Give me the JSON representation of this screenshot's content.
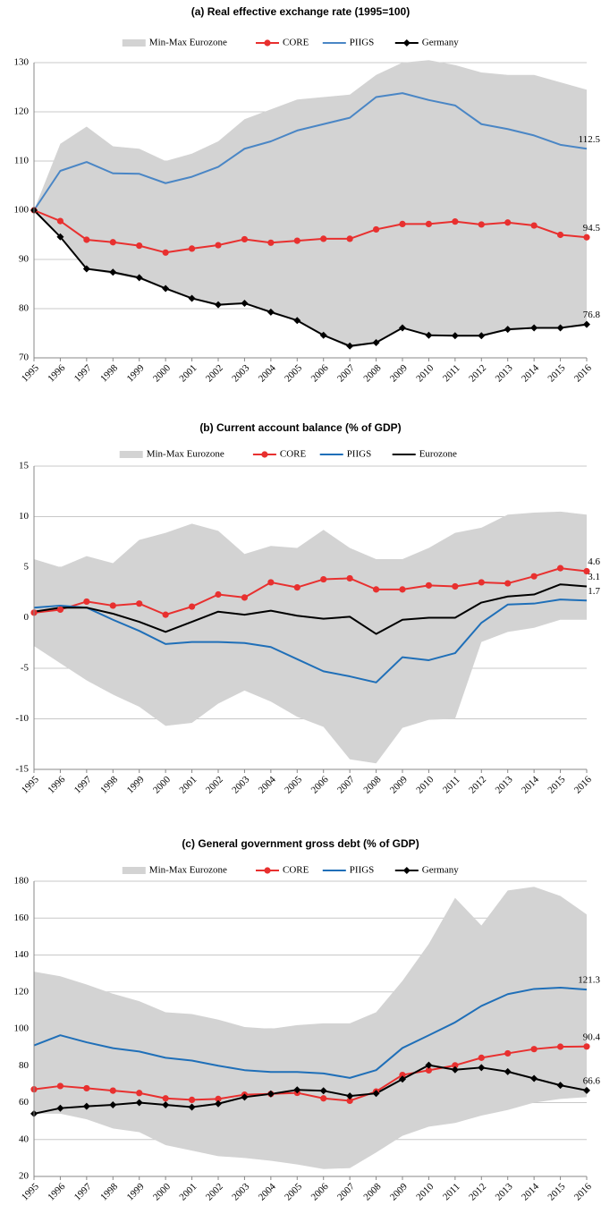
{
  "chart_data": [
    {
      "type": "line",
      "title": "(a) Real effective exchange rate (1995=100)",
      "categories": [
        "1995",
        "1996",
        "1997",
        "1998",
        "1999",
        "2000",
        "2001",
        "2002",
        "2003",
        "2004",
        "2005",
        "2006",
        "2007",
        "2008",
        "2009",
        "2010",
        "2011",
        "2012",
        "2013",
        "2014",
        "2015",
        "2016"
      ],
      "ylim": [
        70,
        130
      ],
      "yticks": [
        70,
        80,
        90,
        100,
        110,
        120,
        130
      ],
      "grid": true,
      "series": [
        {
          "name": "Min-Max Eurozone",
          "kind": "area",
          "color": "#d3d3d3",
          "values": [
            100,
            113.5,
            117,
            113,
            112.5,
            110,
            111.5,
            114,
            118.5,
            120.5,
            122.5,
            123,
            123.5,
            127.5,
            130,
            130.5,
            129.5,
            128,
            127.5,
            127.5,
            126,
            124.5
          ],
          "lower": [
            100,
            95,
            88,
            87,
            86,
            84,
            82,
            80.5,
            81,
            79,
            77.5,
            74.5,
            72,
            73,
            76,
            74.5,
            74.5,
            74.5,
            75.5,
            76,
            76,
            76.5
          ]
        },
        {
          "name": "CORE",
          "color": "#e8302f",
          "marker": "circle",
          "label_last": true,
          "values": [
            100,
            97.8,
            94,
            93.5,
            92.8,
            91.4,
            92.2,
            92.9,
            94.1,
            93.4,
            93.8,
            94.2,
            94.2,
            96.1,
            97.2,
            97.2,
            97.7,
            97.1,
            97.5,
            96.9,
            95,
            94.5
          ]
        },
        {
          "name": "PIIGS",
          "color": "#4a86c5",
          "label_last": true,
          "values": [
            100,
            108,
            109.8,
            107.5,
            107.4,
            105.5,
            106.8,
            108.8,
            112.5,
            114,
            116.2,
            117.5,
            118.8,
            123,
            123.8,
            122.4,
            121.3,
            117.5,
            116.5,
            115.2,
            113.3,
            112.5
          ]
        },
        {
          "name": "Germany",
          "color": "#000000",
          "marker": "diamond",
          "label_last": true,
          "values": [
            100,
            94.6,
            88.1,
            87.4,
            86.3,
            84.1,
            82.1,
            80.8,
            81.1,
            79.3,
            77.6,
            74.6,
            72.4,
            73.1,
            76.1,
            74.6,
            74.5,
            74.5,
            75.8,
            76.1,
            76.1,
            76.8
          ]
        }
      ]
    },
    {
      "type": "line",
      "title": "(b) Current account balance (% of GDP)",
      "categories": [
        "1995",
        "1996",
        "1997",
        "1998",
        "1999",
        "2000",
        "2001",
        "2002",
        "2003",
        "2004",
        "2005",
        "2006",
        "2007",
        "2008",
        "2009",
        "2010",
        "2011",
        "2012",
        "2013",
        "2014",
        "2015",
        "2016"
      ],
      "ylim": [
        -15,
        15
      ],
      "yticks": [
        -15,
        -10,
        -5,
        0,
        5,
        10,
        15
      ],
      "grid": true,
      "series": [
        {
          "name": "Min-Max Eurozone",
          "kind": "area",
          "color": "#d3d3d3",
          "values": [
            5.8,
            5,
            6.1,
            5.4,
            7.7,
            8.4,
            9.3,
            8.6,
            6.3,
            7.1,
            6.9,
            8.7,
            6.9,
            5.8,
            5.8,
            6.9,
            8.4,
            8.9,
            10.2,
            10.4,
            10.5,
            10.2
          ],
          "lower": [
            -2.8,
            -4.5,
            -6.2,
            -7.6,
            -8.8,
            -10.7,
            -10.4,
            -8.5,
            -7.2,
            -8.3,
            -9.8,
            -10.8,
            -14,
            -14.4,
            -10.9,
            -10.1,
            -10,
            -2.4,
            -1.4,
            -1,
            -0.2,
            -0.2
          ]
        },
        {
          "name": "CORE",
          "color": "#e8302f",
          "marker": "circle",
          "label_last": true,
          "values": [
            0.5,
            0.8,
            1.6,
            1.2,
            1.4,
            0.3,
            1.1,
            2.3,
            2,
            3.5,
            3,
            3.8,
            3.9,
            2.8,
            2.8,
            3.2,
            3.1,
            3.5,
            3.4,
            4.1,
            4.9,
            4.6
          ]
        },
        {
          "name": "PIIGS",
          "color": "#1f6fb8",
          "label_last": true,
          "values": [
            1,
            1.2,
            1,
            -0.2,
            -1.3,
            -2.6,
            -2.4,
            -2.4,
            -2.5,
            -2.9,
            -4.1,
            -5.3,
            -5.8,
            -6.4,
            -3.9,
            -4.2,
            -3.5,
            -0.5,
            1.3,
            1.4,
            1.8,
            1.7
          ]
        },
        {
          "name": "Eurozone",
          "color": "#000000",
          "label_last": true,
          "values": [
            0.6,
            1,
            1,
            0.4,
            -0.4,
            -1.4,
            -0.4,
            0.6,
            0.3,
            0.7,
            0.2,
            -0.1,
            0.1,
            -1.6,
            -0.2,
            0,
            0,
            1.5,
            2.1,
            2.3,
            3.3,
            3.1
          ]
        }
      ]
    },
    {
      "type": "line",
      "title": "(c) General government gross debt (% of GDP)",
      "categories": [
        "1995",
        "1996",
        "1997",
        "1998",
        "1999",
        "2000",
        "2001",
        "2002",
        "2003",
        "2004",
        "2005",
        "2006",
        "2007",
        "2008",
        "2009",
        "2010",
        "2011",
        "2012",
        "2013",
        "2014",
        "2015",
        "2016"
      ],
      "ylim": [
        20,
        180
      ],
      "yticks": [
        20,
        40,
        60,
        80,
        100,
        120,
        140,
        160,
        180
      ],
      "grid": true,
      "series": [
        {
          "name": "Min-Max Eurozone",
          "kind": "area",
          "color": "#d3d3d3",
          "values": [
            131,
            128.5,
            124,
            119,
            115,
            109,
            108,
            105,
            101,
            100,
            102,
            103,
            103,
            109,
            126,
            146,
            171,
            156,
            175,
            177,
            172,
            162
          ],
          "lower": [
            54,
            54,
            51,
            46,
            44,
            37,
            34,
            31,
            30,
            28.5,
            26.5,
            24,
            24.5,
            33,
            42,
            47,
            49,
            53,
            56,
            60,
            62,
            63
          ]
        },
        {
          "name": "CORE",
          "color": "#e8302f",
          "marker": "circle",
          "label_last": true,
          "values": [
            67.2,
            69,
            67.8,
            66.5,
            65.2,
            62.3,
            61.5,
            62,
            64.3,
            64.7,
            65.3,
            62.3,
            61,
            66,
            75,
            77.5,
            80.2,
            84.3,
            86.7,
            89,
            90.3,
            90.4
          ]
        },
        {
          "name": "PIIGS",
          "color": "#1f6fb8",
          "label_last": true,
          "values": [
            91,
            96.5,
            92.7,
            89.5,
            87.7,
            84.3,
            82.8,
            80,
            77.6,
            76.6,
            76.6,
            75.8,
            73.4,
            77.6,
            89.6,
            96.5,
            103.5,
            112.4,
            118.8,
            121.6,
            122.3,
            121.3
          ]
        },
        {
          "name": "Germany",
          "color": "#000000",
          "marker": "diamond",
          "label_last": true,
          "values": [
            54,
            57,
            58,
            58.8,
            60,
            58.8,
            57.6,
            59.4,
            63,
            64.7,
            66.9,
            66.4,
            63.6,
            65,
            72.7,
            80.3,
            77.8,
            79,
            76.8,
            73.1,
            69.4,
            66.6
          ]
        }
      ]
    }
  ]
}
